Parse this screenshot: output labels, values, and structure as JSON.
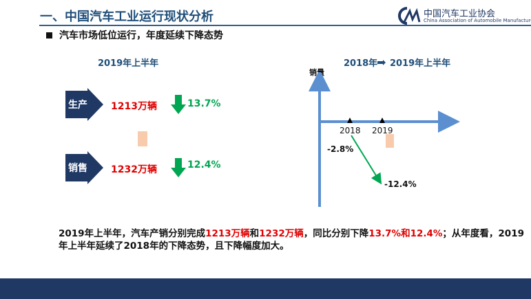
{
  "header": {
    "title": "一、中国汽车工业运行现状分析",
    "logo_cn": "中国汽车工业协会",
    "logo_en": "China Association of Automobile Manufacturers",
    "accent_color": "#1f4e79"
  },
  "subtitle": "汽车市场低位运行，年度延续下降态势",
  "left_panel": {
    "title": "2019年上半年",
    "production": {
      "label": "生产",
      "value": "1213万辆",
      "change": "13.7%",
      "direction": "down"
    },
    "sales": {
      "label": "销售",
      "value": "1232万辆",
      "change": "12.4%",
      "direction": "down"
    }
  },
  "right_panel": {
    "title_left": "2018年",
    "title_right": "2019年上半年",
    "ylabel": "销量",
    "year_a": "2018",
    "year_b": "2019",
    "change_a": "-2.8%",
    "change_b": "-12.4%",
    "arrow_color": "#00a651"
  },
  "summary": {
    "p1": "2019年上半年，汽车产销分别完成",
    "h1": "1213万辆",
    "p2": "和",
    "h2": "1232万辆",
    "p3": "，同比分别下降",
    "h3": "13.7%和12.4%",
    "p4": "；从年度看，2019年上半年延续了2018年的下降态势，且下降幅度加大。"
  }
}
